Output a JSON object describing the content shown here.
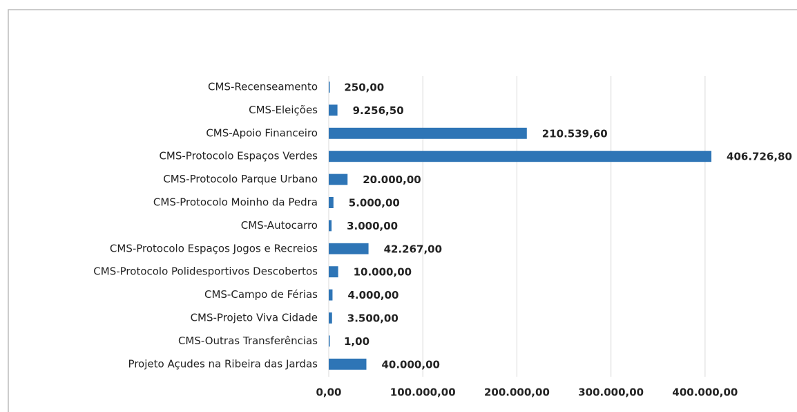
{
  "chart_data": {
    "type": "barh",
    "categories": [
      "CMS-Recenseamento",
      "CMS-Eleições",
      "CMS-Apoio Financeiro",
      "CMS-Protocolo Espaços Verdes",
      "CMS-Protocolo Parque Urbano",
      "CMS-Protocolo Moinho da Pedra",
      "CMS-Autocarro",
      "CMS-Protocolo Espaços Jogos e Recreios",
      "CMS-Protocolo Polidesportivos Descobertos",
      "CMS-Campo de Férias",
      "CMS-Projeto Viva Cidade",
      "CMS-Outras Transferências",
      "Projeto Açudes na Ribeira das Jardas"
    ],
    "values": [
      250,
      9256.5,
      210539.6,
      406726.8,
      20000,
      5000,
      3000,
      42267,
      10000,
      4000,
      3500,
      1,
      40000
    ],
    "value_labels": [
      "250,00",
      "9.256,50",
      "210.539,60",
      "406.726,80",
      "20.000,00",
      "5.000,00",
      "3.000,00",
      "42.267,00",
      "10.000,00",
      "4.000,00",
      "3.500,00",
      "1,00",
      "40.000,00"
    ],
    "color": "#2e75b6",
    "xlim": [
      0,
      450000
    ],
    "xticks": [
      {
        "value": 0,
        "label": "0,00"
      },
      {
        "value": 100000,
        "label": "100.000,00"
      },
      {
        "value": 200000,
        "label": "200.000,00"
      },
      {
        "value": 300000,
        "label": "300.000,00"
      },
      {
        "value": 400000,
        "label": "400.000,00"
      }
    ],
    "grid": true
  }
}
